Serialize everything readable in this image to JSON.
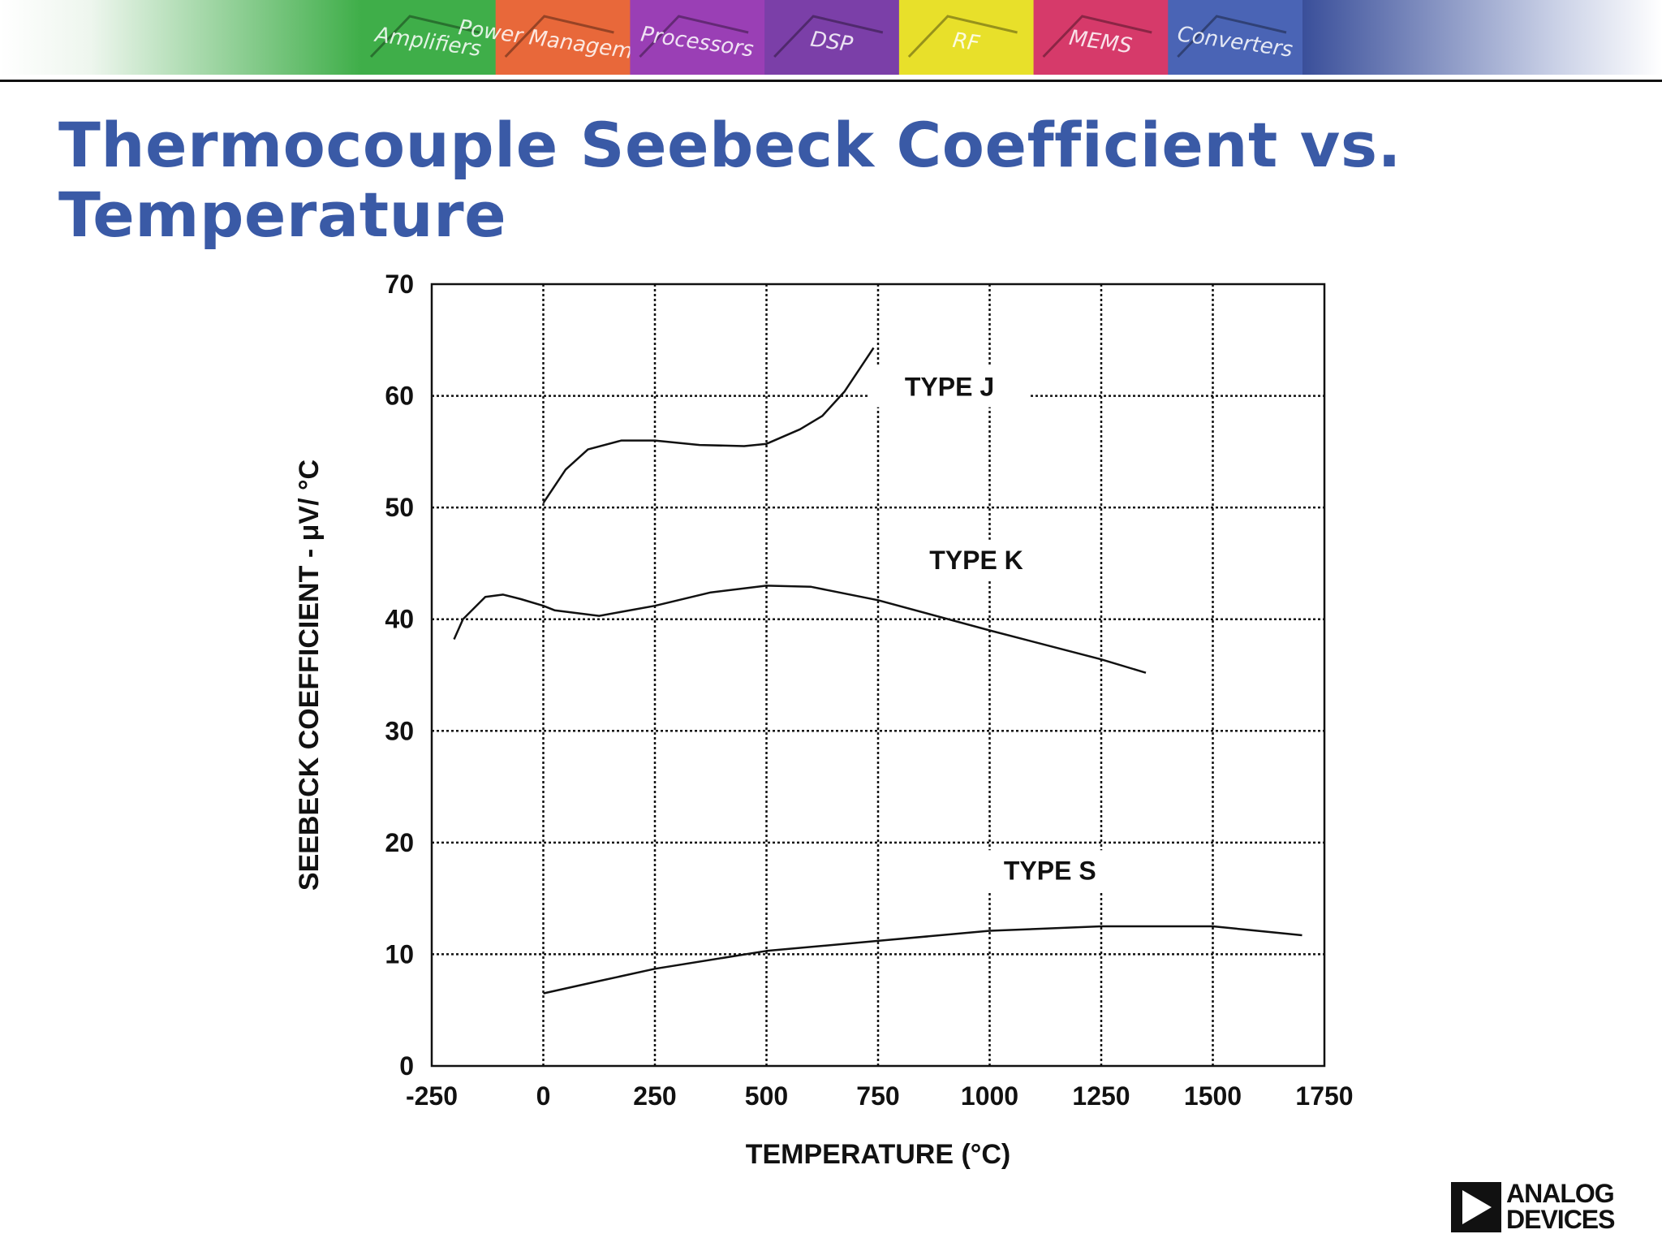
{
  "slide": {
    "title": "Thermocouple Seebeck Coefficient vs. Temperature"
  },
  "banner": {
    "segments": [
      {
        "label": "Amplifiers",
        "color": "#3fae49"
      },
      {
        "label": "Power Management",
        "color": "#e8683a"
      },
      {
        "label": "Processors",
        "color": "#9a3fb5"
      },
      {
        "label": "DSP",
        "color": "#7b3fa8"
      },
      {
        "label": "RF",
        "color": "#e8e02a"
      },
      {
        "label": "MEMS",
        "color": "#d63a6a"
      },
      {
        "label": "Converters",
        "color": "#4a64b5"
      }
    ],
    "accent": "#3a5aa6"
  },
  "chart_data": {
    "type": "line",
    "xlabel": "TEMPERATURE (°C)",
    "ylabel": "SEEBECK COEFFICIENT - μV/ °C",
    "xlim": [
      -250,
      1750
    ],
    "ylim": [
      0,
      70
    ],
    "x_ticks": [
      -250,
      0,
      250,
      500,
      750,
      1000,
      1250,
      1500,
      1750
    ],
    "x_tick_labels": [
      "-250",
      "0",
      "250",
      "500",
      "750",
      "1000",
      "1250",
      "1500",
      "1750"
    ],
    "y_ticks": [
      0,
      10,
      20,
      30,
      40,
      50,
      60,
      70
    ],
    "y_tick_labels": [
      "0",
      "10",
      "20",
      "30",
      "40",
      "50",
      "60",
      "70"
    ],
    "grid": true,
    "legend": "none",
    "series": [
      {
        "name": "TYPE J",
        "label_at": [
          910,
          60
        ],
        "points": [
          [
            0,
            50.4
          ],
          [
            50,
            53.4
          ],
          [
            100,
            55.2
          ],
          [
            175,
            56
          ],
          [
            250,
            56
          ],
          [
            350,
            55.6
          ],
          [
            450,
            55.5
          ],
          [
            500,
            55.7
          ],
          [
            575,
            57
          ],
          [
            625,
            58.2
          ],
          [
            675,
            60.4
          ],
          [
            740,
            64.3
          ]
        ]
      },
      {
        "name": "TYPE K",
        "label_at": [
          970,
          44.5
        ],
        "points": [
          [
            -200,
            38.2
          ],
          [
            -180,
            40
          ],
          [
            -130,
            42
          ],
          [
            -90,
            42.2
          ],
          [
            -50,
            41.8
          ],
          [
            0,
            41.2
          ],
          [
            25,
            40.8
          ],
          [
            125,
            40.3
          ],
          [
            250,
            41.2
          ],
          [
            375,
            42.4
          ],
          [
            500,
            43
          ],
          [
            600,
            42.9
          ],
          [
            750,
            41.7
          ],
          [
            1000,
            39
          ],
          [
            1250,
            36.4
          ],
          [
            1350,
            35.2
          ]
        ]
      },
      {
        "name": "TYPE S",
        "label_at": [
          1135,
          16.7
        ],
        "points": [
          [
            0,
            6.5
          ],
          [
            125,
            7.6
          ],
          [
            250,
            8.7
          ],
          [
            500,
            10.3
          ],
          [
            750,
            11.2
          ],
          [
            1000,
            12.1
          ],
          [
            1250,
            12.5
          ],
          [
            1500,
            12.5
          ],
          [
            1700,
            11.7
          ]
        ]
      }
    ]
  },
  "logo": {
    "line1": "ANALOG",
    "line2": "DEVICES"
  }
}
